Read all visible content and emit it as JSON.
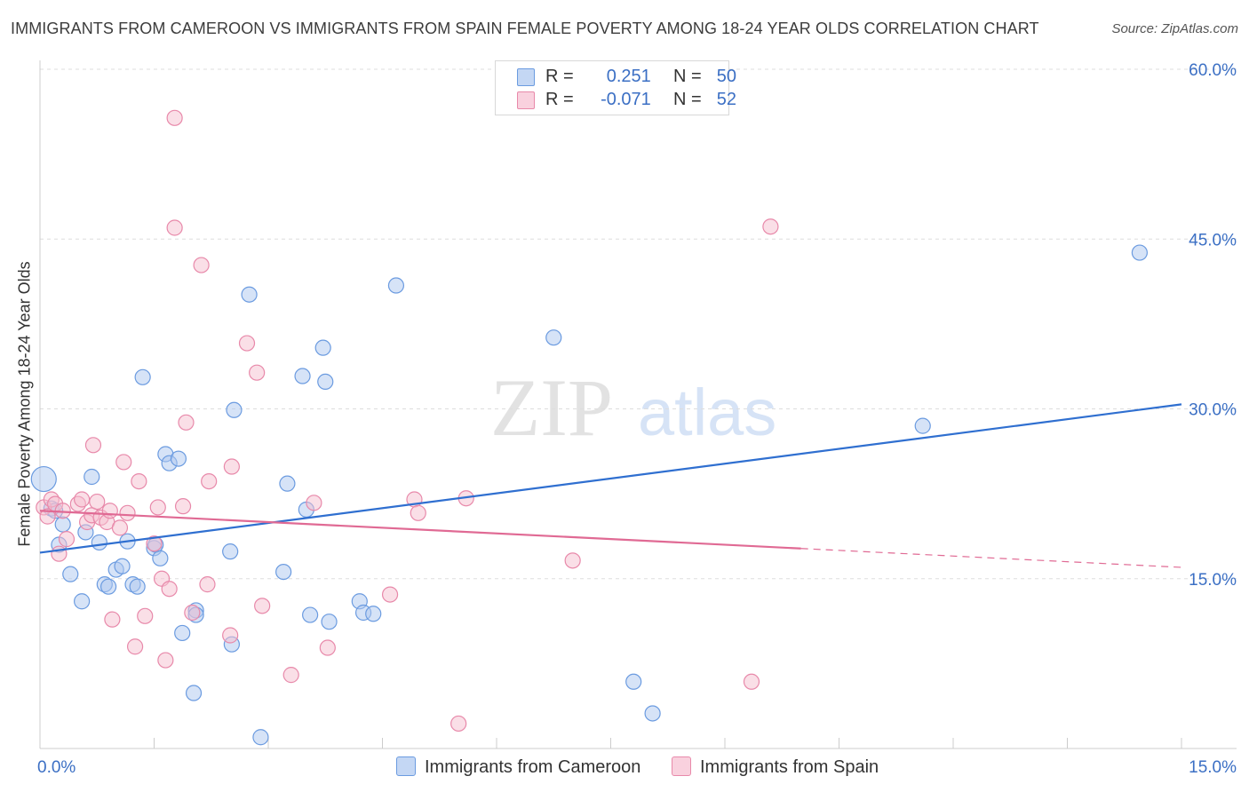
{
  "title": "IMMIGRANTS FROM CAMEROON VS IMMIGRANTS FROM SPAIN FEMALE POVERTY AMONG 18-24 YEAR OLDS CORRELATION CHART",
  "source": "Source: ZipAtlas.com",
  "watermark": {
    "zip": "ZIP",
    "atlas": "atlas"
  },
  "colors": {
    "blue_fill": "#aec8f0",
    "blue_stroke": "#6b9be0",
    "blue_line": "#2f6fd0",
    "pink_fill": "#f6bfd0",
    "pink_stroke": "#e889aa",
    "pink_line": "#e06a94",
    "tick_label": "#3b6fc4",
    "grid": "#dddddd"
  },
  "legend": {
    "rows": [
      {
        "r_label": "R =",
        "r_value": "0.251",
        "n_label": "N =",
        "n_value": "50",
        "color": "blue"
      },
      {
        "r_label": "R =",
        "r_value": "-0.071",
        "n_label": "N =",
        "n_value": "52",
        "color": "pink"
      }
    ]
  },
  "chart_data": {
    "type": "scatter",
    "title": "IMMIGRANTS FROM CAMEROON VS IMMIGRANTS FROM SPAIN FEMALE POVERTY AMONG 18-24 YEAR OLDS CORRELATION CHART",
    "xlabel": "",
    "ylabel": "Female Poverty Among 18-24 Year Olds",
    "xlim": [
      0,
      15
    ],
    "ylim": [
      0,
      60
    ],
    "x_tick_labels": [
      "0.0%",
      "15.0%"
    ],
    "y_ticks": [
      15,
      30,
      45,
      60
    ],
    "y_tick_labels": [
      "15.0%",
      "30.0%",
      "45.0%",
      "60.0%"
    ],
    "grid": true,
    "legend_position": "top-center",
    "series": [
      {
        "name": "Immigrants from Cameroon",
        "color": "blue",
        "trend": {
          "x": [
            0,
            15
          ],
          "y": [
            17.3,
            30.4
          ],
          "dashed_from": null
        },
        "points": [
          [
            0.05,
            23.8
          ],
          [
            0.15,
            21.2
          ],
          [
            0.2,
            21.0
          ],
          [
            0.25,
            18.0
          ],
          [
            0.3,
            19.8
          ],
          [
            0.4,
            15.4
          ],
          [
            0.55,
            13.0
          ],
          [
            0.6,
            19.1
          ],
          [
            0.68,
            24.0
          ],
          [
            0.78,
            18.2
          ],
          [
            0.85,
            14.5
          ],
          [
            0.9,
            14.3
          ],
          [
            1.0,
            15.8
          ],
          [
            1.08,
            16.1
          ],
          [
            1.15,
            18.3
          ],
          [
            1.22,
            14.5
          ],
          [
            1.28,
            14.3
          ],
          [
            1.35,
            32.8
          ],
          [
            1.5,
            17.7
          ],
          [
            1.52,
            18.0
          ],
          [
            1.58,
            16.8
          ],
          [
            1.65,
            26.0
          ],
          [
            1.7,
            25.2
          ],
          [
            1.82,
            25.6
          ],
          [
            1.87,
            10.2
          ],
          [
            2.02,
            4.9
          ],
          [
            2.05,
            12.2
          ],
          [
            2.05,
            11.8
          ],
          [
            2.5,
            17.4
          ],
          [
            2.52,
            9.2
          ],
          [
            2.55,
            29.9
          ],
          [
            2.75,
            40.1
          ],
          [
            2.9,
            1.0
          ],
          [
            3.2,
            15.6
          ],
          [
            3.25,
            23.4
          ],
          [
            3.45,
            32.9
          ],
          [
            3.5,
            21.1
          ],
          [
            3.55,
            11.8
          ],
          [
            3.72,
            35.4
          ],
          [
            3.75,
            32.4
          ],
          [
            3.8,
            11.2
          ],
          [
            4.2,
            13.0
          ],
          [
            4.25,
            12.0
          ],
          [
            4.38,
            11.9
          ],
          [
            4.68,
            40.9
          ],
          [
            6.75,
            36.3
          ],
          [
            7.8,
            5.9
          ],
          [
            8.05,
            3.1
          ],
          [
            11.6,
            28.5
          ],
          [
            14.45,
            43.8
          ]
        ]
      },
      {
        "name": "Immigrants from Spain",
        "color": "pink",
        "trend": {
          "x": [
            0,
            15
          ],
          "y": [
            21.0,
            16.0
          ],
          "dashed_from": 10.0
        },
        "points": [
          [
            0.05,
            21.3
          ],
          [
            0.1,
            20.5
          ],
          [
            0.15,
            22.0
          ],
          [
            0.2,
            21.6
          ],
          [
            0.25,
            17.2
          ],
          [
            0.3,
            21.0
          ],
          [
            0.35,
            18.5
          ],
          [
            0.5,
            21.6
          ],
          [
            0.55,
            22.0
          ],
          [
            0.62,
            20.0
          ],
          [
            0.68,
            20.6
          ],
          [
            0.7,
            26.8
          ],
          [
            0.75,
            21.8
          ],
          [
            0.8,
            20.4
          ],
          [
            0.88,
            20.0
          ],
          [
            0.92,
            21.0
          ],
          [
            0.95,
            11.4
          ],
          [
            1.05,
            19.5
          ],
          [
            1.1,
            25.3
          ],
          [
            1.15,
            20.8
          ],
          [
            1.25,
            9.0
          ],
          [
            1.3,
            23.6
          ],
          [
            1.38,
            11.7
          ],
          [
            1.5,
            18.1
          ],
          [
            1.55,
            21.3
          ],
          [
            1.6,
            15.0
          ],
          [
            1.65,
            7.8
          ],
          [
            1.7,
            14.1
          ],
          [
            1.77,
            46.0
          ],
          [
            1.77,
            55.7
          ],
          [
            1.88,
            21.4
          ],
          [
            1.92,
            28.8
          ],
          [
            2.0,
            12.0
          ],
          [
            2.12,
            42.7
          ],
          [
            2.2,
            14.5
          ],
          [
            2.22,
            23.6
          ],
          [
            2.5,
            10.0
          ],
          [
            2.52,
            24.9
          ],
          [
            2.72,
            35.8
          ],
          [
            2.85,
            33.2
          ],
          [
            2.92,
            12.6
          ],
          [
            3.3,
            6.5
          ],
          [
            3.6,
            21.7
          ],
          [
            3.78,
            8.9
          ],
          [
            4.6,
            13.6
          ],
          [
            4.92,
            22.0
          ],
          [
            4.97,
            20.8
          ],
          [
            5.5,
            2.2
          ],
          [
            5.6,
            22.1
          ],
          [
            7.0,
            16.6
          ],
          [
            9.35,
            5.9
          ],
          [
            9.6,
            46.1
          ]
        ]
      }
    ]
  }
}
